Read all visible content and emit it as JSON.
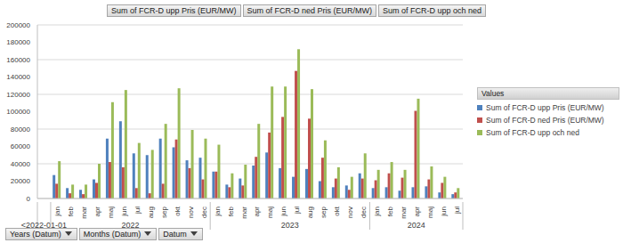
{
  "chart_data": {
    "type": "bar",
    "field_buttons": [
      "Sum of FCR-D upp Pris (EUR/MW)",
      "Sum of FCR-D ned Pris (EUR/MW)",
      "Sum of FCR-D upp och ned"
    ],
    "axis_buttons": [
      "Years (Datum)",
      "Months (Datum)",
      "Datum"
    ],
    "legend_title": "Values",
    "categories": [
      null,
      "jan",
      "feb",
      "mar",
      "apr",
      "maj",
      "jun",
      "jul",
      "aug",
      "sep",
      "okt",
      "nov",
      "dec",
      "jan",
      "feb",
      "mar",
      "apr",
      "maj",
      "jun",
      "jul",
      "aug",
      "sep",
      "okt",
      "nov",
      "dec",
      "jan",
      "feb",
      "mar",
      "apr",
      "maj",
      "jun",
      "jul"
    ],
    "years": [
      "<2022-01-01",
      "2022",
      "2022",
      "2022",
      "2022",
      "2022",
      "2022",
      "2022",
      "2022",
      "2022",
      "2022",
      "2022",
      "2022",
      "2023",
      "2023",
      "2023",
      "2023",
      "2023",
      "2023",
      "2023",
      "2023",
      "2023",
      "2023",
      "2023",
      "2023",
      "2024",
      "2024",
      "2024",
      "2024",
      "2024",
      "2024",
      "2024"
    ],
    "series": [
      {
        "name": "Sum of FCR-D upp Pris (EUR/MW)",
        "color": "#4f81bd",
        "values": [
          null,
          27000,
          12000,
          10000,
          22000,
          69000,
          89000,
          52000,
          50000,
          69000,
          59000,
          44000,
          47000,
          31000,
          16000,
          23000,
          38000,
          53000,
          35000,
          25000,
          34000,
          20000,
          13000,
          15000,
          29000,
          12000,
          13000,
          9000,
          13000,
          14000,
          7000,
          5000
        ]
      },
      {
        "name": "Sum of FCR-D ned Pris (EUR/MW)",
        "color": "#c0504d",
        "values": [
          null,
          17000,
          6000,
          5000,
          18000,
          42000,
          36000,
          12000,
          6000,
          17000,
          68000,
          35000,
          22000,
          31000,
          13000,
          15000,
          48000,
          76000,
          94000,
          147000,
          92000,
          47000,
          23000,
          10000,
          23000,
          21000,
          29000,
          24000,
          101000,
          22000,
          18000,
          7000
        ]
      },
      {
        "name": "Sum of FCR-D upp och ned",
        "color": "#9bbb59",
        "values": [
          null,
          43000,
          16000,
          16000,
          40000,
          111000,
          125000,
          64000,
          56000,
          86000,
          127000,
          79000,
          69000,
          62000,
          29000,
          39000,
          86000,
          129000,
          129000,
          172000,
          126000,
          67000,
          36000,
          25000,
          52000,
          33000,
          42000,
          33000,
          115000,
          37000,
          25000,
          12000
        ]
      }
    ],
    "ylim": [
      0,
      200000
    ],
    "yticks": [
      0,
      20000,
      40000,
      60000,
      80000,
      100000,
      120000,
      140000,
      160000,
      180000,
      200000
    ],
    "grid": true,
    "legend": "right"
  }
}
